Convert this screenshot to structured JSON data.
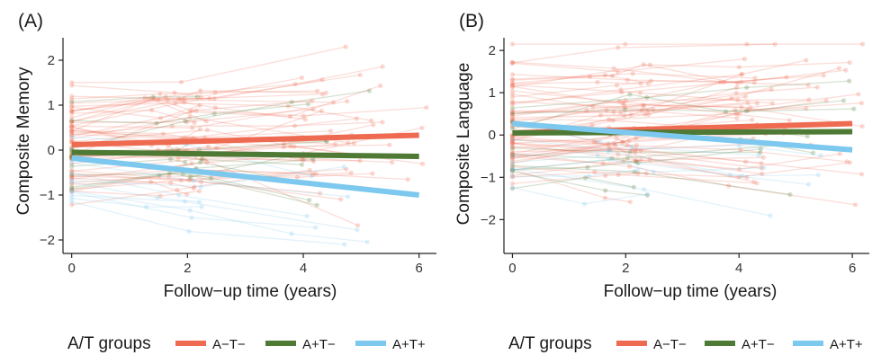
{
  "legend": {
    "title": "A/T groups",
    "entries": [
      {
        "name": "A−T−",
        "color": "#EE6A50"
      },
      {
        "name": "A+T−",
        "color": "#4E7A35"
      },
      {
        "name": "A+T+",
        "color": "#7CC8EE"
      }
    ]
  },
  "chart_data": [
    {
      "type": "line",
      "panel_label": "(A)",
      "xlabel": "Follow−up time (years)",
      "ylabel": "Composite Memory",
      "xlim": [
        -0.15,
        6.3
      ],
      "ylim": [
        -2.3,
        2.5
      ],
      "xticks": [
        0,
        2,
        4,
        6
      ],
      "yticks": [
        -2,
        -1,
        0,
        1,
        2
      ],
      "xtick_labels": [
        "0",
        "2",
        "4",
        "6"
      ],
      "ytick_labels": [
        "−2",
        "−1",
        "0",
        "1",
        "2"
      ],
      "grid": false,
      "trajectory_seed": 7,
      "trajectory_groups": [
        {
          "group": "A−T−",
          "count": 55,
          "y0_mean": 0.15,
          "y0_sd": 0.65,
          "slope_sd": 0.1
        },
        {
          "group": "A+T−",
          "count": 12,
          "y0_mean": -0.1,
          "y0_sd": 0.6,
          "slope_sd": 0.1
        },
        {
          "group": "A+T+",
          "count": 10,
          "y0_mean": -0.6,
          "y0_sd": 0.55,
          "slope_sd": 0.1
        }
      ],
      "series": [
        {
          "name": "A−T−",
          "x": [
            0,
            6
          ],
          "y": [
            0.12,
            0.33
          ]
        },
        {
          "name": "A+T−",
          "x": [
            0,
            6
          ],
          "y": [
            -0.05,
            -0.14
          ]
        },
        {
          "name": "A+T+",
          "x": [
            0,
            6
          ],
          "y": [
            -0.18,
            -1.0
          ]
        }
      ]
    },
    {
      "type": "line",
      "panel_label": "(B)",
      "xlabel": "Follow−up time (years)",
      "ylabel": "Composite Language",
      "xlim": [
        -0.15,
        6.3
      ],
      "ylim": [
        -2.8,
        2.3
      ],
      "xticks": [
        0,
        2,
        4,
        6
      ],
      "yticks": [
        -2,
        -1,
        0,
        1,
        2
      ],
      "xtick_labels": [
        "0",
        "2",
        "4",
        "6"
      ],
      "ytick_labels": [
        "−2",
        "−1",
        "0",
        "1",
        "2"
      ],
      "grid": false,
      "trajectory_seed": 19,
      "trajectory_groups": [
        {
          "group": "A−T−",
          "count": 60,
          "y0_mean": 0.25,
          "y0_sd": 0.7,
          "slope_sd": 0.12
        },
        {
          "group": "A+T−",
          "count": 12,
          "y0_mean": -0.2,
          "y0_sd": 0.7,
          "slope_sd": 0.1
        },
        {
          "group": "A+T+",
          "count": 8,
          "y0_mean": -0.3,
          "y0_sd": 0.6,
          "slope_sd": 0.1
        }
      ],
      "series": [
        {
          "name": "A−T−",
          "x": [
            0,
            6
          ],
          "y": [
            0.05,
            0.27
          ]
        },
        {
          "name": "A+T−",
          "x": [
            0,
            6
          ],
          "y": [
            0.05,
            0.08
          ]
        },
        {
          "name": "A+T+",
          "x": [
            0,
            6
          ],
          "y": [
            0.27,
            -0.35
          ]
        }
      ]
    }
  ]
}
